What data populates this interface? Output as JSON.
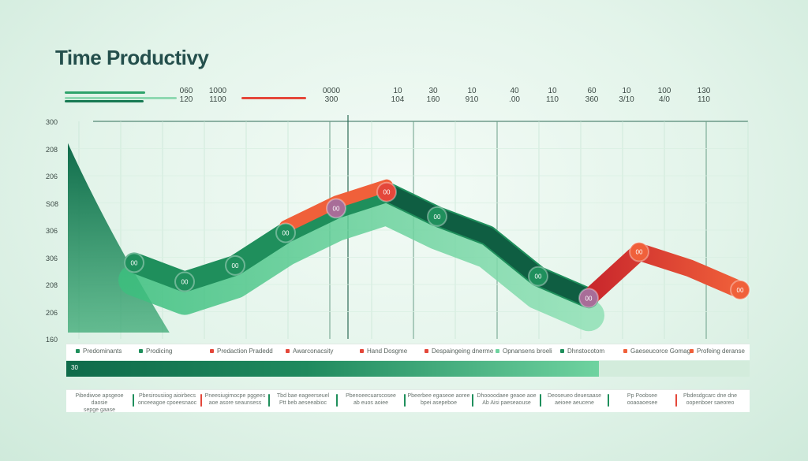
{
  "title": "Time Productivy",
  "colors": {
    "green_dark": "#0f6b4a",
    "green_mid": "#1f8f5c",
    "green_light": "#6fd3a0",
    "red": "#e4473a",
    "orange": "#f0603a",
    "purple": "#a86d98"
  },
  "top_labels": [
    {
      "a": "060",
      "b": "120"
    },
    {
      "a": "1000",
      "b": "1100"
    },
    {
      "a": "0000",
      "b": "300"
    },
    {
      "a": "10",
      "b": "104"
    },
    {
      "a": "30",
      "b": "160"
    },
    {
      "a": "10",
      "b": "910"
    },
    {
      "a": "40",
      "b": ".00"
    },
    {
      "a": "10",
      "b": "110"
    },
    {
      "a": "60",
      "b": "360"
    },
    {
      "a": "10",
      "b": "3/10"
    },
    {
      "a": "100",
      "b": "4/0"
    },
    {
      "a": "130",
      "b": "110"
    }
  ],
  "chart_data": {
    "type": "line",
    "title": "Time Productivy",
    "ylabel": "",
    "xlabel": "",
    "yticks": [
      "300",
      "208",
      "206",
      "S08",
      "306",
      "306",
      "208",
      "206",
      "160"
    ],
    "ylim": [
      0,
      8
    ],
    "series": [
      {
        "color": "#1f8f5c",
        "points": [
          {
            "x": 0,
            "y": 7.2
          },
          {
            "x": 1,
            "y": 2.8
          },
          {
            "x": 2,
            "y": 2.1
          },
          {
            "x": 3,
            "y": 2.7
          },
          {
            "x": 4,
            "y": 3.9
          },
          {
            "x": 5,
            "y": 4.8
          },
          {
            "x": 6,
            "y": 5.4
          },
          {
            "x": 7,
            "y": 4.5
          },
          {
            "x": 8,
            "y": 3.8
          },
          {
            "x": 9,
            "y": 2.3
          },
          {
            "x": 10,
            "y": 1.5
          }
        ]
      },
      {
        "color": "#e4473a",
        "points": [
          {
            "x": 10,
            "y": 1.5
          },
          {
            "x": 11,
            "y": 3.2
          },
          {
            "x": 12,
            "y": 2.6
          },
          {
            "x": 13,
            "y": 1.8
          }
        ]
      }
    ],
    "markers": [
      {
        "x": 1,
        "y": 2.8,
        "label": "00",
        "color": "#1f8f5c"
      },
      {
        "x": 2,
        "y": 2.1,
        "label": "00",
        "color": "#1f8f5c"
      },
      {
        "x": 3,
        "y": 2.7,
        "label": "00",
        "color": "#1f8f5c"
      },
      {
        "x": 4,
        "y": 3.9,
        "label": "00",
        "color": "#1f8f5c"
      },
      {
        "x": 5,
        "y": 4.8,
        "label": "00",
        "color": "#a86d98"
      },
      {
        "x": 6,
        "y": 5.4,
        "label": "00",
        "color": "#e4473a"
      },
      {
        "x": 7,
        "y": 4.5,
        "label": "00",
        "color": "#1f8f5c"
      },
      {
        "x": 9,
        "y": 2.3,
        "label": "00",
        "color": "#1f8f5c"
      },
      {
        "x": 10,
        "y": 1.5,
        "label": "00",
        "color": "#a86d98"
      },
      {
        "x": 11,
        "y": 3.2,
        "label": "00",
        "color": "#f0603a"
      },
      {
        "x": 13,
        "y": 1.8,
        "label": "00",
        "color": "#f0603a"
      }
    ]
  },
  "legend": [
    {
      "label": "Predominants",
      "color": "#1f8f5c"
    },
    {
      "label": "Prodicing",
      "color": "#1f8f5c"
    },
    {
      "label": "Predaction Pradedd",
      "color": "#e4473a"
    },
    {
      "label": "Awarconacsity",
      "color": "#e4473a"
    },
    {
      "label": "Hand Dosgme",
      "color": "#e4473a"
    },
    {
      "label": "Despaingeing dnerme",
      "color": "#e4473a"
    },
    {
      "label": "Opnansens broeli",
      "color": "#6fd3a0"
    },
    {
      "label": "Dhnstocotom",
      "color": "#1f8f5c"
    },
    {
      "label": "Gaeseucorce Gomage",
      "color": "#f0603a"
    },
    {
      "label": "Profeing deranse",
      "color": "#f0603a"
    }
  ],
  "timeline": {
    "label": "30",
    "progress": 0.78
  },
  "footer": [
    {
      "a": "Pibediwoe apsgeoe daosie",
      "b": "sepge gaase"
    },
    {
      "a": "Pbesirousiiog aioirbecs",
      "b": "onceeagoe cpoeesnaoc"
    },
    {
      "a": "Pneesiugimocpe pggees",
      "b": "aoe asore seaunsess"
    },
    {
      "a": "Tbd bae eageerseuel",
      "b": "Ptt beb aeseeabioc"
    },
    {
      "a": "Pbenoeecuarscosee",
      "b": "ab euos aoiee"
    },
    {
      "a": "Pbeerbee egaseoe aoree",
      "b": "bpei asepeboe"
    },
    {
      "a": "Dhoooodaee geaoe aoe",
      "b": "Ab Aisi paeseaouse"
    },
    {
      "a": "Deoseueo deuesaase",
      "b": "aeioee aeucene"
    },
    {
      "a": "Pp Poobsee",
      "b": "ooaoaoesee"
    },
    {
      "a": "Pbdesdgcarc dne dne",
      "b": "oopenboer saeoreo"
    }
  ]
}
